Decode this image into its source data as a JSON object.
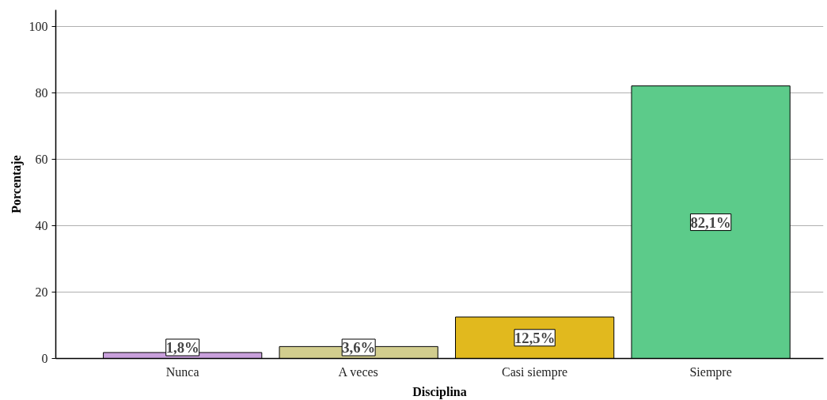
{
  "chart_data": {
    "type": "bar",
    "xlabel": "Disciplina",
    "ylabel": "Porcentaje",
    "categories": [
      "Nunca",
      "A veces",
      "Casi siempre",
      "Siempre"
    ],
    "values": [
      1.8,
      3.6,
      12.5,
      82.1
    ],
    "colors": [
      "#c9a0dc",
      "#d2cd8e",
      "#e1b91e",
      "#5ccb8a"
    ],
    "value_labels": [
      "1,8%",
      "3,6%",
      "12,5%",
      "82,1%"
    ],
    "ylim": [
      0,
      105
    ],
    "yticks": [
      0,
      20,
      40,
      60,
      80,
      100
    ],
    "grid": "y"
  }
}
